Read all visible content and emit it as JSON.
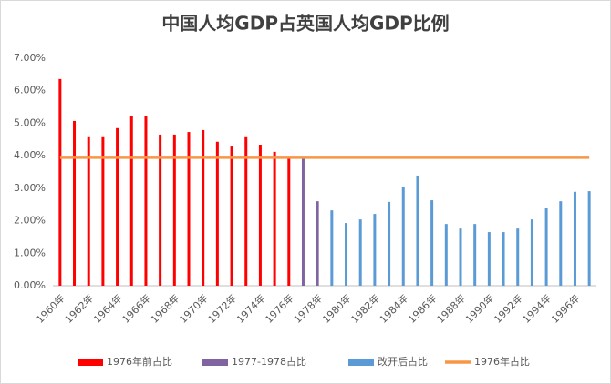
{
  "chart_data": {
    "type": "bar",
    "title": "中国人均GDP占英国人均GDP比例",
    "categories": [
      "1960年",
      null,
      "1962年",
      null,
      "1964年",
      null,
      "1966年",
      null,
      "1968年",
      null,
      "1970年",
      null,
      "1972年",
      null,
      "1974年",
      null,
      "1976年",
      null,
      "1978年",
      null,
      "1980年",
      null,
      "1982年",
      null,
      "1984年",
      null,
      "1986年",
      null,
      "1988年",
      null,
      "1990年",
      null,
      "1992年",
      null,
      "1994年",
      null,
      "1996年",
      null
    ],
    "series": [
      {
        "name": "1976年前占比",
        "color": "#ff0000",
        "values": [
          6.36,
          5.07,
          4.57,
          4.57,
          4.85,
          5.21,
          5.21,
          4.65,
          4.65,
          4.73,
          4.79,
          4.43,
          4.31,
          4.57,
          4.34,
          4.12,
          3.95,
          null,
          null,
          null,
          null,
          null,
          null,
          null,
          null,
          null,
          null,
          null,
          null,
          null,
          null,
          null,
          null,
          null,
          null,
          null,
          null,
          null
        ]
      },
      {
        "name": "1977-1978占比",
        "color": "#8064a2",
        "values": [
          null,
          null,
          null,
          null,
          null,
          null,
          null,
          null,
          null,
          null,
          null,
          null,
          null,
          null,
          null,
          null,
          null,
          3.95,
          2.6,
          null,
          null,
          null,
          null,
          null,
          null,
          null,
          null,
          null,
          null,
          null,
          null,
          null,
          null,
          null,
          null,
          null,
          null,
          null
        ]
      },
      {
        "name": "改开后占比",
        "color": "#5b9bd5",
        "values": [
          null,
          null,
          null,
          null,
          null,
          null,
          null,
          null,
          null,
          null,
          null,
          null,
          null,
          null,
          null,
          null,
          null,
          null,
          null,
          2.32,
          1.93,
          2.04,
          2.21,
          2.58,
          3.05,
          3.39,
          2.63,
          1.9,
          1.76,
          1.9,
          1.65,
          1.65,
          1.76,
          2.04,
          2.38,
          2.6,
          2.89,
          2.91
        ]
      },
      {
        "name": "1976年占比",
        "type": "line",
        "color": "#f79646",
        "values": [
          3.95,
          3.95,
          3.95,
          3.95,
          3.95,
          3.95,
          3.95,
          3.95,
          3.95,
          3.95,
          3.95,
          3.95,
          3.95,
          3.95,
          3.95,
          3.95,
          3.95,
          3.95,
          3.95,
          3.95,
          3.95,
          3.95,
          3.95,
          3.95,
          3.95,
          3.95,
          3.95,
          3.95,
          3.95,
          3.95,
          3.95,
          3.95,
          3.95,
          3.95,
          3.95,
          3.95,
          3.95,
          3.95
        ]
      }
    ],
    "ylim": [
      0,
      7
    ],
    "yticks": [
      {
        "value": 0,
        "label": "0.00%"
      },
      {
        "value": 1,
        "label": "1.00%"
      },
      {
        "value": 2,
        "label": "2.00%"
      },
      {
        "value": 3,
        "label": "3.00%"
      },
      {
        "value": 4,
        "label": "4.00%"
      },
      {
        "value": 5,
        "label": "5.00%"
      },
      {
        "value": 6,
        "label": "6.00%"
      },
      {
        "value": 7,
        "label": "7.00%"
      }
    ],
    "grid": false,
    "legend": "bottom"
  }
}
